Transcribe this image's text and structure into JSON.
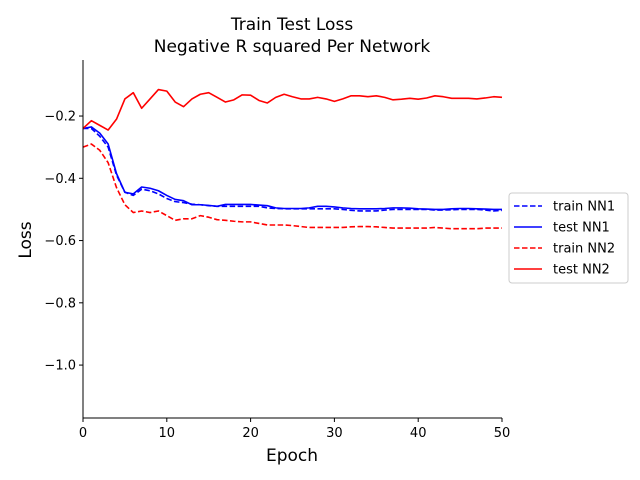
{
  "chart_data": {
    "type": "line",
    "title": [
      "Train Test Loss",
      "Negative R squared Per Network"
    ],
    "xlabel": "Epoch",
    "ylabel": "Loss",
    "xlim": [
      0,
      50
    ],
    "ylim": [
      -1.17,
      -0.02
    ],
    "xticks": [
      0,
      10,
      20,
      30,
      40,
      50
    ],
    "xtick_labels": [
      "0",
      "10",
      "20",
      "30",
      "40",
      "50"
    ],
    "yticks": [
      -0.2,
      -0.4,
      -0.6,
      -0.8,
      -1.0
    ],
    "ytick_labels": [
      "−0.2",
      "−0.4",
      "−0.6",
      "−0.8",
      "−1.0"
    ],
    "grid": false,
    "legend_position": "right",
    "series": [
      {
        "name": "train NN1",
        "color": "#0000ff",
        "dash": "dashed",
        "x": [
          0,
          1,
          2,
          3,
          4,
          5,
          6,
          7,
          8,
          9,
          10,
          11,
          12,
          13,
          14,
          15,
          16,
          17,
          18,
          19,
          20,
          21,
          22,
          23,
          24,
          25,
          26,
          27,
          28,
          29,
          30,
          31,
          32,
          33,
          34,
          35,
          36,
          37,
          38,
          39,
          40,
          41,
          42,
          43,
          44,
          45,
          46,
          47,
          48,
          49,
          50
        ],
        "y": [
          -0.24,
          -0.24,
          -0.265,
          -0.3,
          -0.39,
          -0.445,
          -0.455,
          -0.435,
          -0.44,
          -0.45,
          -0.465,
          -0.475,
          -0.478,
          -0.483,
          -0.485,
          -0.488,
          -0.49,
          -0.49,
          -0.49,
          -0.49,
          -0.49,
          -0.49,
          -0.495,
          -0.497,
          -0.498,
          -0.498,
          -0.498,
          -0.498,
          -0.498,
          -0.498,
          -0.498,
          -0.5,
          -0.503,
          -0.505,
          -0.505,
          -0.505,
          -0.502,
          -0.5,
          -0.5,
          -0.5,
          -0.5,
          -0.5,
          -0.502,
          -0.502,
          -0.501,
          -0.5,
          -0.5,
          -0.5,
          -0.502,
          -0.505,
          -0.503
        ]
      },
      {
        "name": "test NN1",
        "color": "#0000ff",
        "dash": "solid",
        "x": [
          0,
          1,
          2,
          3,
          4,
          5,
          6,
          7,
          8,
          9,
          10,
          11,
          12,
          13,
          14,
          15,
          16,
          17,
          18,
          19,
          20,
          21,
          22,
          23,
          24,
          25,
          26,
          27,
          28,
          29,
          30,
          31,
          32,
          33,
          34,
          35,
          36,
          37,
          38,
          39,
          40,
          41,
          42,
          43,
          44,
          45,
          46,
          47,
          48,
          49,
          50
        ],
        "y": [
          -0.24,
          -0.235,
          -0.255,
          -0.29,
          -0.385,
          -0.445,
          -0.45,
          -0.428,
          -0.432,
          -0.44,
          -0.455,
          -0.468,
          -0.472,
          -0.485,
          -0.485,
          -0.487,
          -0.49,
          -0.484,
          -0.484,
          -0.484,
          -0.484,
          -0.486,
          -0.488,
          -0.495,
          -0.497,
          -0.497,
          -0.497,
          -0.495,
          -0.49,
          -0.49,
          -0.492,
          -0.495,
          -0.497,
          -0.498,
          -0.498,
          -0.498,
          -0.497,
          -0.495,
          -0.495,
          -0.496,
          -0.498,
          -0.499,
          -0.5,
          -0.5,
          -0.498,
          -0.497,
          -0.497,
          -0.498,
          -0.499,
          -0.5,
          -0.5
        ]
      },
      {
        "name": "train NN2",
        "color": "#ff0000",
        "dash": "dashed",
        "x": [
          0,
          1,
          2,
          3,
          4,
          5,
          6,
          7,
          8,
          9,
          10,
          11,
          12,
          13,
          14,
          15,
          16,
          17,
          18,
          19,
          20,
          21,
          22,
          23,
          24,
          25,
          26,
          27,
          28,
          29,
          30,
          31,
          32,
          33,
          34,
          35,
          36,
          37,
          38,
          39,
          40,
          41,
          42,
          43,
          44,
          45,
          46,
          47,
          48,
          49,
          50
        ],
        "y": [
          -0.3,
          -0.29,
          -0.31,
          -0.35,
          -0.43,
          -0.485,
          -0.51,
          -0.505,
          -0.51,
          -0.505,
          -0.52,
          -0.535,
          -0.53,
          -0.53,
          -0.52,
          -0.525,
          -0.533,
          -0.535,
          -0.538,
          -0.54,
          -0.54,
          -0.545,
          -0.55,
          -0.55,
          -0.55,
          -0.552,
          -0.555,
          -0.558,
          -0.558,
          -0.558,
          -0.558,
          -0.558,
          -0.556,
          -0.555,
          -0.555,
          -0.556,
          -0.558,
          -0.56,
          -0.56,
          -0.56,
          -0.56,
          -0.56,
          -0.558,
          -0.56,
          -0.562,
          -0.562,
          -0.562,
          -0.562,
          -0.56,
          -0.56,
          -0.56
        ]
      },
      {
        "name": "test NN2",
        "color": "#ff0000",
        "dash": "solid",
        "x": [
          0,
          1,
          2,
          3,
          4,
          5,
          6,
          7,
          8,
          9,
          10,
          11,
          12,
          13,
          14,
          15,
          16,
          17,
          18,
          19,
          20,
          21,
          22,
          23,
          24,
          25,
          26,
          27,
          28,
          29,
          30,
          31,
          32,
          33,
          34,
          35,
          36,
          37,
          38,
          39,
          40,
          41,
          42,
          43,
          44,
          45,
          46,
          47,
          48,
          49,
          50
        ],
        "y": [
          -0.24,
          -0.215,
          -0.23,
          -0.245,
          -0.21,
          -0.145,
          -0.125,
          -0.175,
          -0.145,
          -0.115,
          -0.12,
          -0.155,
          -0.17,
          -0.145,
          -0.13,
          -0.125,
          -0.14,
          -0.155,
          -0.148,
          -0.132,
          -0.133,
          -0.15,
          -0.158,
          -0.14,
          -0.13,
          -0.138,
          -0.145,
          -0.145,
          -0.14,
          -0.145,
          -0.153,
          -0.145,
          -0.135,
          -0.135,
          -0.138,
          -0.135,
          -0.14,
          -0.148,
          -0.146,
          -0.143,
          -0.146,
          -0.142,
          -0.135,
          -0.138,
          -0.143,
          -0.143,
          -0.143,
          -0.145,
          -0.142,
          -0.138,
          -0.14
        ]
      }
    ]
  }
}
